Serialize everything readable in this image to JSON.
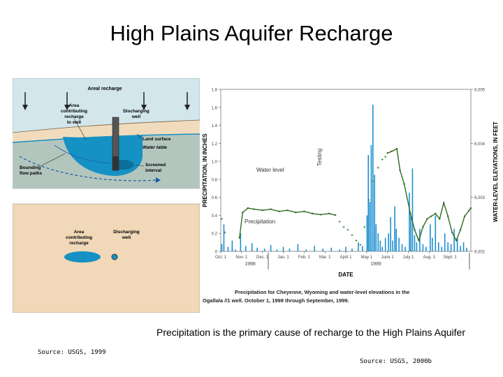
{
  "title": "High Plains Aquifer Recharge",
  "caption": "Precipitation is the primary cause of recharge to the High Plains Aquifer",
  "sources": {
    "left": "Source: USGS, 1999",
    "right": "Source: USGS, 2000b"
  },
  "diagram": {
    "cross_section": {
      "areal_recharge": "Areal recharge",
      "area_contributing_line1": "Area",
      "area_contributing_line2": "contributing",
      "area_contributing_line3": "recharge",
      "area_contributing_line4": "to well",
      "discharging_line1": "Discharging",
      "discharging_line2": "well",
      "land_surface": "Land surface",
      "water_table": "Water table",
      "bounding_line1": "Bounding",
      "bounding_line2": "flow paths",
      "screened_line1": "Screened",
      "screened_line2": "interval"
    },
    "plan_view": {
      "area_line1": "Area",
      "area_line2": "contributing",
      "area_line3": "recharge",
      "discharging_line1": "Discharging",
      "discharging_line2": "well"
    },
    "colors": {
      "sky": "#d2e6ec",
      "land": "#f0dcbc",
      "water": "#1591c4",
      "plan_bg": "#f0d8b8"
    }
  },
  "chart_data": {
    "type": "bar",
    "title": "",
    "xlabel": "DATE",
    "ylabel": "PRECIPITATION, IN INCHES",
    "y2label": "WATER-LEVEL ELEVATIONS, IN FEET",
    "ylim": [
      0,
      1.8
    ],
    "y_ticks": [
      "0",
      "0.2",
      "0.4",
      "0.6",
      "0.8",
      "1.0",
      "1.2",
      "1.4",
      "1.6",
      "1.8"
    ],
    "y2_ticks": [
      "6,002",
      "6,003",
      "6,004",
      "6,005"
    ],
    "x_ticks": [
      "Oct. 1",
      "Nov. 1",
      "Dec. 1",
      "Jan. 1",
      "Feb. 1",
      "Mar. 1",
      "April 1",
      "May 1",
      "June 1",
      "July 1",
      "Aug. 1",
      "Sept. 1"
    ],
    "year_labels": [
      "1998",
      "1999"
    ],
    "annotations": {
      "water_level": "Water level",
      "precipitation": "Precipitation",
      "testing": "Testing"
    },
    "caption_line1": "Precipitation for Cheyenne, Wyoming and water-level elevations in the",
    "caption_line2": "Ogallala //1 well. October 1, 1998 through September, 1999.",
    "precip_series": {
      "name": "Precipitation",
      "color": "#1c8fd0",
      "points": [
        [
          0.05,
          0.08
        ],
        [
          0.15,
          0.3
        ],
        [
          0.35,
          0.05
        ],
        [
          0.55,
          0.12
        ],
        [
          0.7,
          0.02
        ],
        [
          0.95,
          0.2
        ],
        [
          1.2,
          0.06
        ],
        [
          1.5,
          0.09
        ],
        [
          1.75,
          0.04
        ],
        [
          2.1,
          0.03
        ],
        [
          2.4,
          0.07
        ],
        [
          2.7,
          0.02
        ],
        [
          3.0,
          0.05
        ],
        [
          3.3,
          0.03
        ],
        [
          3.7,
          0.08
        ],
        [
          4.1,
          0.02
        ],
        [
          4.5,
          0.06
        ],
        [
          4.9,
          0.03
        ],
        [
          5.3,
          0.04
        ],
        [
          5.7,
          0.02
        ],
        [
          6.0,
          0.05
        ],
        [
          6.3,
          0.03
        ],
        [
          6.6,
          0.1
        ],
        [
          6.8,
          0.06
        ],
        [
          7.02,
          0.4
        ],
        [
          7.08,
          1.07
        ],
        [
          7.15,
          0.55
        ],
        [
          7.22,
          1.18
        ],
        [
          7.3,
          1.63
        ],
        [
          7.38,
          0.85
        ],
        [
          7.45,
          0.3
        ],
        [
          7.55,
          0.2
        ],
        [
          7.65,
          0.12
        ],
        [
          7.75,
          0.05
        ],
        [
          7.9,
          0.15
        ],
        [
          8.05,
          0.2
        ],
        [
          8.15,
          0.38
        ],
        [
          8.25,
          0.12
        ],
        [
          8.35,
          0.5
        ],
        [
          8.42,
          0.25
        ],
        [
          8.55,
          0.15
        ],
        [
          8.7,
          0.08
        ],
        [
          8.85,
          0.05
        ],
        [
          9.05,
          0.65
        ],
        [
          9.12,
          0.4
        ],
        [
          9.2,
          0.92
        ],
        [
          9.3,
          0.18
        ],
        [
          9.4,
          0.1
        ],
        [
          9.55,
          0.25
        ],
        [
          9.7,
          0.08
        ],
        [
          9.85,
          0.05
        ],
        [
          10.05,
          0.3
        ],
        [
          10.15,
          0.15
        ],
        [
          10.3,
          0.4
        ],
        [
          10.45,
          0.1
        ],
        [
          10.6,
          0.05
        ],
        [
          10.75,
          0.2
        ],
        [
          10.9,
          0.1
        ],
        [
          11.05,
          0.08
        ],
        [
          11.2,
          0.25
        ],
        [
          11.35,
          0.15
        ],
        [
          11.5,
          0.06
        ],
        [
          11.65,
          0.1
        ],
        [
          11.8,
          0.04
        ]
      ]
    },
    "water_series": {
      "name": "Water level",
      "color": "#2e6b1e",
      "points": [
        [
          0.9,
          6002.25
        ],
        [
          1.05,
          6002.72
        ],
        [
          1.3,
          6002.8
        ],
        [
          1.6,
          6002.78
        ],
        [
          2.0,
          6002.76
        ],
        [
          2.4,
          6002.78
        ],
        [
          2.8,
          6002.74
        ],
        [
          3.2,
          6002.76
        ],
        [
          3.6,
          6002.72
        ],
        [
          4.0,
          6002.74
        ],
        [
          4.4,
          6002.7
        ],
        [
          4.8,
          6002.68
        ],
        [
          5.2,
          6002.7
        ],
        [
          5.5,
          6002.67
        ],
        [
          8.0,
          6003.82
        ],
        [
          8.2,
          6003.85
        ],
        [
          8.45,
          6003.9
        ],
        [
          8.6,
          6003.5
        ],
        [
          8.8,
          6003.25
        ],
        [
          9.1,
          6002.7
        ],
        [
          9.3,
          6002.4
        ],
        [
          9.5,
          6002.2
        ],
        [
          9.7,
          6002.45
        ],
        [
          9.9,
          6002.6
        ],
        [
          10.1,
          6002.65
        ],
        [
          10.3,
          6002.7
        ],
        [
          10.5,
          6002.6
        ],
        [
          10.7,
          6002.9
        ],
        [
          10.9,
          6002.65
        ],
        [
          11.1,
          6002.35
        ],
        [
          11.3,
          6002.2
        ],
        [
          11.5,
          6002.4
        ],
        [
          11.7,
          6002.65
        ],
        [
          11.9,
          6002.75
        ],
        [
          12.0,
          6002.8
        ]
      ],
      "estimated_points": [
        [
          0.05,
          6002.6
        ],
        [
          0.2,
          6002.35
        ],
        [
          5.7,
          6002.55
        ],
        [
          5.9,
          6002.45
        ],
        [
          6.1,
          6002.4
        ],
        [
          6.3,
          6002.3
        ],
        [
          6.5,
          6002.2
        ],
        [
          6.7,
          6002.12
        ],
        [
          6.9,
          6002.45
        ],
        [
          7.1,
          6002.95
        ],
        [
          7.3,
          6003.3
        ],
        [
          7.55,
          6003.55
        ],
        [
          7.75,
          6003.7
        ],
        [
          7.9,
          6003.75
        ]
      ]
    }
  }
}
